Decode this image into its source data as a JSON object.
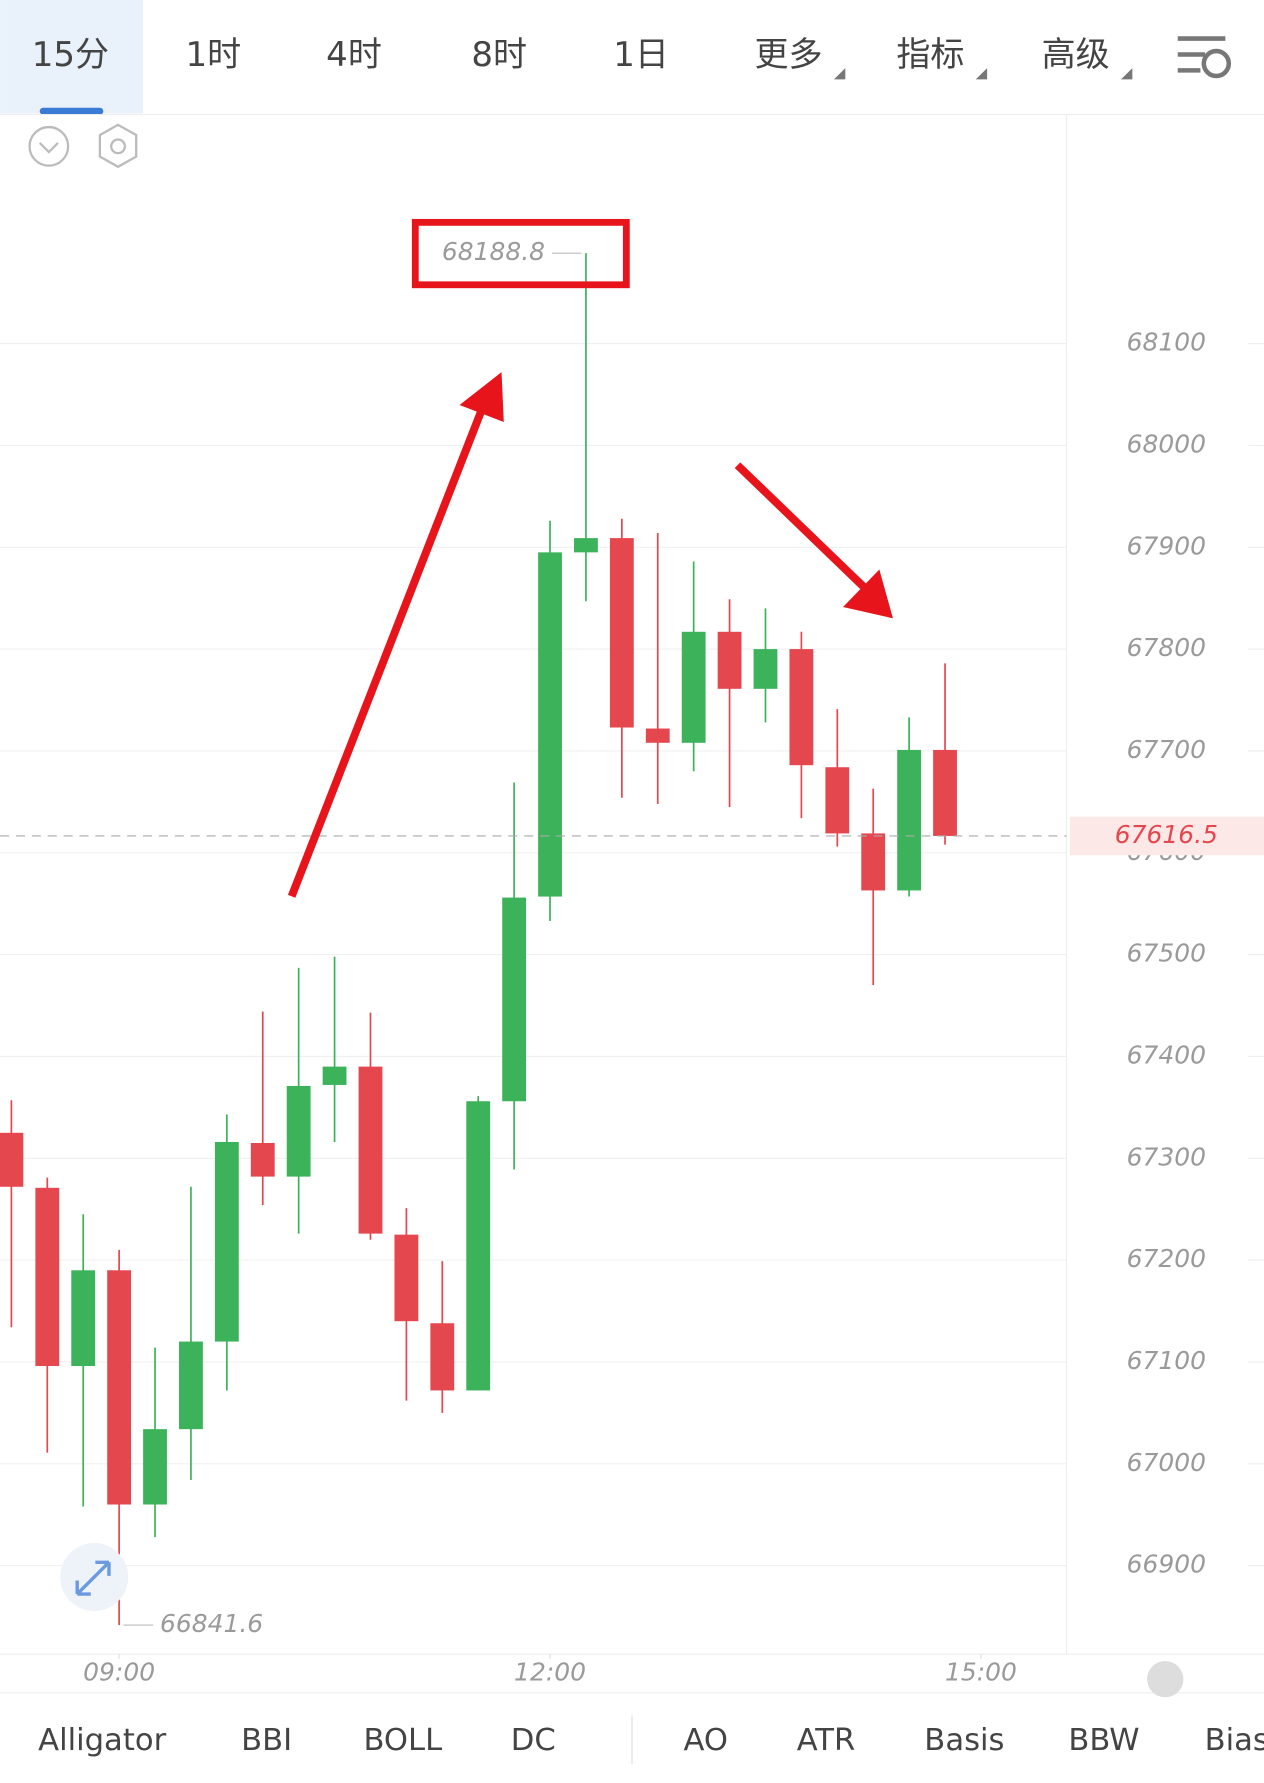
{
  "tabs": [
    "15分",
    "1时",
    "4时",
    "8时",
    "1日",
    "更多",
    "指标",
    "高级"
  ],
  "indicators": [
    "Alligator",
    "BBI",
    "BOLL",
    "DC",
    "AO",
    "ATR",
    "Basis",
    "BBW",
    "Bias"
  ],
  "chart_data": {
    "type": "candlestick",
    "series": [
      {
        "up_color": "#3cb35a",
        "down_color": "#e5474f",
        "open": [
          67325,
          67271,
          67096,
          67190,
          66960,
          67034,
          67120,
          67315,
          67282,
          67372,
          67390,
          67225,
          67138,
          67072,
          67356,
          67557,
          67895,
          67909,
          67722,
          67708,
          67817,
          67761,
          67800,
          67684,
          67619,
          67563,
          67701
        ],
        "high": [
          67357,
          67281,
          67245,
          67210,
          67114,
          67272,
          67343,
          67444,
          67487,
          67498,
          67443,
          67251,
          67199,
          67361,
          67669,
          67926,
          68188.8,
          67928,
          67914,
          67886,
          67849,
          67840,
          67817,
          67741,
          67663,
          67733,
          67786
        ],
        "low": [
          67134,
          67011,
          66958,
          66841.6,
          66928,
          66984,
          67072,
          67254,
          67226,
          67316,
          67220,
          67062,
          67050,
          67072,
          67289,
          67533,
          67847,
          67654,
          67648,
          67680,
          67645,
          67728,
          67634,
          67606,
          67470,
          67557,
          67608
        ],
        "close": [
          67272,
          67096,
          67190,
          66960,
          67034,
          67120,
          67316,
          67282,
          67371,
          67390,
          67226,
          67140,
          67072,
          67356,
          67556,
          67895,
          67909,
          67723,
          67708,
          67817,
          67761,
          67800,
          67686,
          67619,
          67563,
          67701,
          67616.5
        ]
      }
    ],
    "ylim": [
      66813,
      68326
    ],
    "yticks": [
      66900,
      67000,
      67100,
      67200,
      67300,
      67400,
      67500,
      67600,
      67700,
      67800,
      67900,
      68000,
      68100
    ],
    "xticks": [
      {
        "value": 3,
        "label": "09:00"
      },
      {
        "value": 15,
        "label": "12:00"
      },
      {
        "value": 27,
        "label": "15:00"
      }
    ],
    "grid": true
  }
}
